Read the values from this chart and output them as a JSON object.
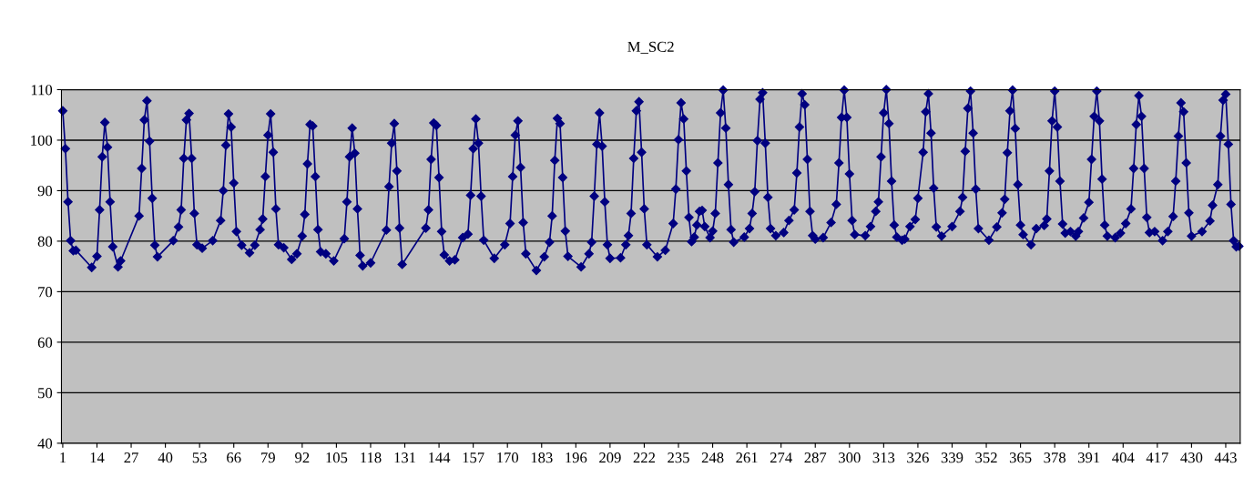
{
  "chart_data": {
    "type": "line",
    "title": "M_SC2",
    "x": [
      1,
      2,
      3,
      4,
      5,
      6,
      12,
      14,
      15,
      16,
      17,
      18,
      19,
      20,
      22,
      23,
      30,
      31,
      32,
      33,
      34,
      35,
      36,
      37,
      43,
      45,
      46,
      47,
      48,
      49,
      50,
      51,
      52,
      54,
      58,
      61,
      62,
      63,
      64,
      65,
      66,
      67,
      69,
      72,
      74,
      76,
      77,
      78,
      79,
      80,
      81,
      82,
      83,
      85,
      88,
      90,
      92,
      93,
      94,
      95,
      96,
      97,
      98,
      99,
      101,
      104,
      108,
      109,
      110,
      111,
      112,
      113,
      114,
      115,
      118,
      124,
      125,
      126,
      127,
      128,
      129,
      130,
      139,
      140,
      141,
      142,
      143,
      144,
      145,
      146,
      148,
      150,
      153,
      155,
      156,
      157,
      158,
      159,
      160,
      161,
      165,
      169,
      171,
      172,
      173,
      174,
      175,
      176,
      177,
      181,
      184,
      186,
      187,
      188,
      189,
      190,
      191,
      192,
      193,
      198,
      201,
      202,
      203,
      204,
      205,
      206,
      207,
      208,
      209,
      213,
      215,
      216,
      217,
      218,
      219,
      220,
      221,
      222,
      223,
      227,
      230,
      233,
      234,
      235,
      236,
      237,
      238,
      239,
      240,
      241,
      242,
      243,
      244,
      245,
      247,
      248,
      249,
      250,
      251,
      252,
      253,
      254,
      255,
      256,
      260,
      262,
      263,
      264,
      265,
      266,
      267,
      268,
      269,
      270,
      272,
      275,
      277,
      279,
      280,
      281,
      282,
      283,
      284,
      285,
      286,
      287,
      290,
      293,
      295,
      296,
      297,
      298,
      299,
      300,
      301,
      302,
      306,
      308,
      310,
      311,
      312,
      313,
      314,
      315,
      316,
      317,
      318,
      320,
      321,
      323,
      325,
      326,
      328,
      329,
      330,
      331,
      332,
      333,
      335,
      339,
      342,
      343,
      344,
      345,
      346,
      347,
      348,
      349,
      353,
      356,
      358,
      359,
      360,
      361,
      362,
      363,
      364,
      365,
      366,
      369,
      371,
      374,
      375,
      376,
      377,
      378,
      379,
      380,
      381,
      382,
      384,
      386,
      387,
      389,
      391,
      392,
      393,
      394,
      395,
      396,
      397,
      398,
      401,
      403,
      405,
      407,
      408,
      409,
      410,
      411,
      412,
      413,
      414,
      416,
      419,
      421,
      423,
      424,
      425,
      426,
      427,
      428,
      429,
      430,
      434,
      437,
      438,
      440,
      441,
      442,
      443,
      444,
      445,
      446,
      447,
      448
    ],
    "series": [
      {
        "color": "#000080",
        "values": [
          105.8,
          98.3,
          87.8,
          80.1,
          78.1,
          78.2,
          74.8,
          77.0,
          86.2,
          96.7,
          103.5,
          98.6,
          87.8,
          78.9,
          74.9,
          76.1,
          85.0,
          94.4,
          104.0,
          107.8,
          99.8,
          88.5,
          79.2,
          76.9,
          80.1,
          82.8,
          86.2,
          96.4,
          104.0,
          105.3,
          96.4,
          85.5,
          79.3,
          78.6,
          80.1,
          84.1,
          90.0,
          99.0,
          105.2,
          102.6,
          91.5,
          81.9,
          79.2,
          77.7,
          79.2,
          82.3,
          84.4,
          92.8,
          101.0,
          105.2,
          97.6,
          86.4,
          79.3,
          78.7,
          76.4,
          77.5,
          81.0,
          85.3,
          95.3,
          103.1,
          102.8,
          92.8,
          82.3,
          77.9,
          77.5,
          76.1,
          80.5,
          87.8,
          96.7,
          102.4,
          97.4,
          86.4,
          77.2,
          75.1,
          75.7,
          82.2,
          90.8,
          99.4,
          103.3,
          93.9,
          82.6,
          75.4,
          82.6,
          86.2,
          96.2,
          103.4,
          102.9,
          92.6,
          81.9,
          77.3,
          76.1,
          76.3,
          80.7,
          81.4,
          89.1,
          98.3,
          104.2,
          99.4,
          88.9,
          80.2,
          76.6,
          79.3,
          83.5,
          92.8,
          101.0,
          103.8,
          94.6,
          83.7,
          77.5,
          74.2,
          76.9,
          79.8,
          85.0,
          96.0,
          104.3,
          103.3,
          92.6,
          82.0,
          77.0,
          74.9,
          77.5,
          79.8,
          88.9,
          99.2,
          105.4,
          98.8,
          87.8,
          79.3,
          76.6,
          76.7,
          79.3,
          81.1,
          85.5,
          96.4,
          105.8,
          107.6,
          97.6,
          86.4,
          79.3,
          76.9,
          78.2,
          83.5,
          90.3,
          100.1,
          107.4,
          104.2,
          93.9,
          84.7,
          79.9,
          80.8,
          83.2,
          85.9,
          86.1,
          82.9,
          80.7,
          82.0,
          85.5,
          95.5,
          105.4,
          109.9,
          102.4,
          91.2,
          82.3,
          79.8,
          80.8,
          82.5,
          85.5,
          89.8,
          99.9,
          108.1,
          109.4,
          99.4,
          88.7,
          82.5,
          81.1,
          81.7,
          84.1,
          86.2,
          93.5,
          102.6,
          109.2,
          107.0,
          96.2,
          85.9,
          81.1,
          80.4,
          80.7,
          83.7,
          87.3,
          95.5,
          104.5,
          109.9,
          104.5,
          93.3,
          84.1,
          81.3,
          81.1,
          82.9,
          85.9,
          87.8,
          96.7,
          105.4,
          110.0,
          103.3,
          91.9,
          83.2,
          80.8,
          80.2,
          80.4,
          82.9,
          84.3,
          88.5,
          97.6,
          105.6,
          109.2,
          101.4,
          90.5,
          82.8,
          81.0,
          82.9,
          85.9,
          88.7,
          97.8,
          106.3,
          109.7,
          101.4,
          90.3,
          82.5,
          80.2,
          82.8,
          85.6,
          88.3,
          97.5,
          105.8,
          109.9,
          102.3,
          91.2,
          83.2,
          81.3,
          79.3,
          82.5,
          83.1,
          84.4,
          93.9,
          103.8,
          109.7,
          102.6,
          91.9,
          83.4,
          81.6,
          81.9,
          81.0,
          81.9,
          84.6,
          87.7,
          96.2,
          104.7,
          109.7,
          103.8,
          92.3,
          83.2,
          81.0,
          80.7,
          81.6,
          83.5,
          86.4,
          94.4,
          103.1,
          108.8,
          104.7,
          94.4,
          84.7,
          81.7,
          81.9,
          80.1,
          81.9,
          84.9,
          91.9,
          100.8,
          107.4,
          105.6,
          95.5,
          85.6,
          81.0,
          81.9,
          84.0,
          87.1,
          91.2,
          100.8,
          107.9,
          109.1,
          99.2,
          87.3,
          80.1,
          78.9,
          79.0
        ]
      }
    ],
    "xlim": [
      0.5,
      448.5
    ],
    "xticks": [
      1,
      14,
      27,
      40,
      53,
      66,
      79,
      92,
      105,
      118,
      131,
      144,
      157,
      170,
      183,
      196,
      209,
      222,
      235,
      248,
      261,
      274,
      287,
      300,
      313,
      326,
      339,
      352,
      365,
      378,
      391,
      404,
      417,
      430,
      443
    ],
    "ylim": [
      40,
      110
    ],
    "yticks": [
      40,
      50,
      60,
      70,
      80,
      90,
      100,
      110
    ],
    "grid": "y",
    "marker": "diamond",
    "line_style": "solid"
  }
}
